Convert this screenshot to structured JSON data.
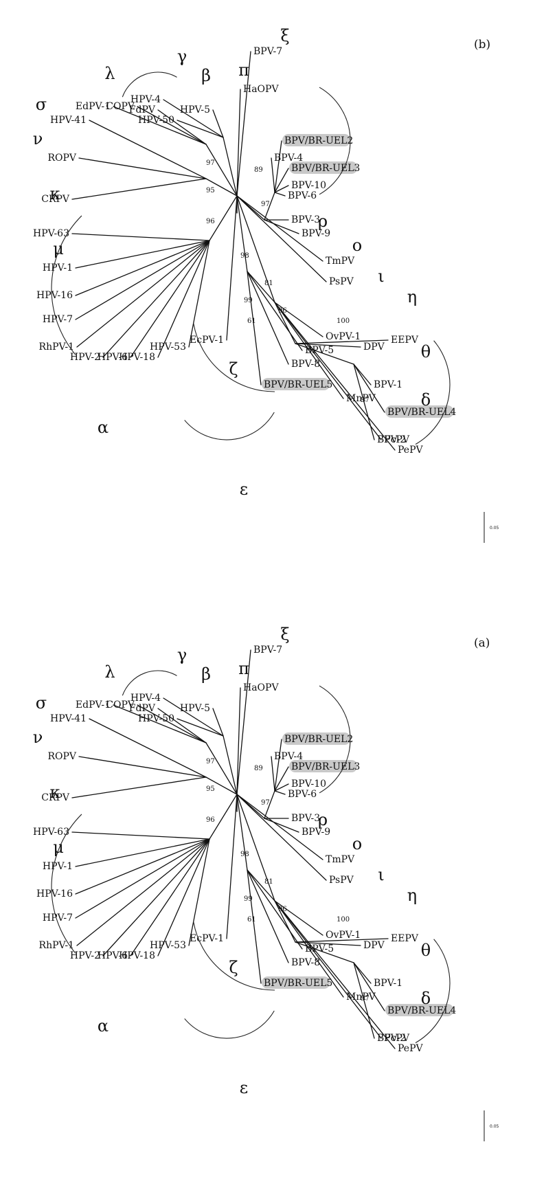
{
  "panels": [
    {
      "id": "a",
      "label": "(a)",
      "scale_bar": "0.05",
      "taxa": [
        "BPV-7",
        "HaOPV",
        "HPV-5",
        "HPV-50",
        "HPV-4",
        "FdPV",
        "COPV",
        "EdPV-1",
        "HPV-41",
        "ROPV",
        "CRPV",
        "HPV-63",
        "HPV-1",
        "HPV-16",
        "HPV-7",
        "RhPV-1",
        "HPV-2",
        "HPV-6",
        "HPV-18",
        "HPV-53",
        "EcPV-1",
        "BPV/BR-UEL5",
        "BPV-8",
        "BPV-5",
        "OvPV-1",
        "DPV",
        "EEPV",
        "BPV-1",
        "BPV/BR-UEL4",
        "BPV-2",
        "PePV",
        "FcPV",
        "MnPV",
        "PsPV",
        "TmPV",
        "BPV-9",
        "BPV-3",
        "BPV-6",
        "BPV-10",
        "BPV/BR-UEL3",
        "BPV/BR-UEL2",
        "BPV-4"
      ],
      "highlighted": [
        "BPV/BR-UEL2",
        "BPV/BR-UEL3",
        "BPV/BR-UEL4",
        "BPV/BR-UEL5"
      ],
      "bootstrap": [
        "97",
        "95",
        "96",
        "98",
        "81",
        "99",
        "61",
        "100",
        "97",
        "96",
        "97",
        "89"
      ],
      "genera": [
        "α",
        "β",
        "γ",
        "δ",
        "ε",
        "ζ",
        "η",
        "θ",
        "ι",
        "κ",
        "λ",
        "μ",
        "ν",
        "ξ",
        "ο",
        "π",
        "ρ",
        "σ"
      ]
    },
    {
      "id": "b",
      "label": "(b)",
      "scale_bar": "0.05",
      "taxa": [
        "BPV-7",
        "HaOPV",
        "HPV-5",
        "HPV-50",
        "HPV-4",
        "FdPV",
        "COPV",
        "EdPV-1",
        "HPV-41",
        "ROPV",
        "CRPV",
        "HPV-63",
        "HPV-1",
        "HPV-16",
        "HPV-7",
        "RhPV-1",
        "HPV-2",
        "HPV-6",
        "HPV-18",
        "HPV-53",
        "EcPV-1",
        "BPV/BR-UEL5",
        "BPV-8",
        "BPV-5",
        "OvPV-1",
        "DPV",
        "EEPV",
        "BPV-1",
        "BPV/BR-UEL4",
        "BPV-2",
        "PePV",
        "FcPV",
        "MnPV",
        "PsPV",
        "TmPV",
        "BPV-9",
        "BPV-3",
        "BPV-6",
        "BPV-10",
        "BPV/BR-UEL3",
        "BPV/BR-UEL2",
        "BPV-4"
      ],
      "highlighted": [
        "BPV/BR-UEL2",
        "BPV/BR-UEL3",
        "BPV/BR-UEL4",
        "BPV/BR-UEL5"
      ],
      "bootstrap": [
        "97",
        "95",
        "96",
        "98",
        "81",
        "99",
        "61",
        "100",
        "97",
        "96",
        "97",
        "89"
      ],
      "genera": [
        "α",
        "β",
        "γ",
        "δ",
        "ε",
        "ζ",
        "η",
        "θ",
        "ι",
        "κ",
        "λ",
        "μ",
        "ν",
        "ξ",
        "ο",
        "π",
        "ρ",
        "σ"
      ]
    }
  ],
  "colors": {
    "line": "#111111",
    "highlight": "#c9c9c9",
    "background": "#ffffff"
  }
}
